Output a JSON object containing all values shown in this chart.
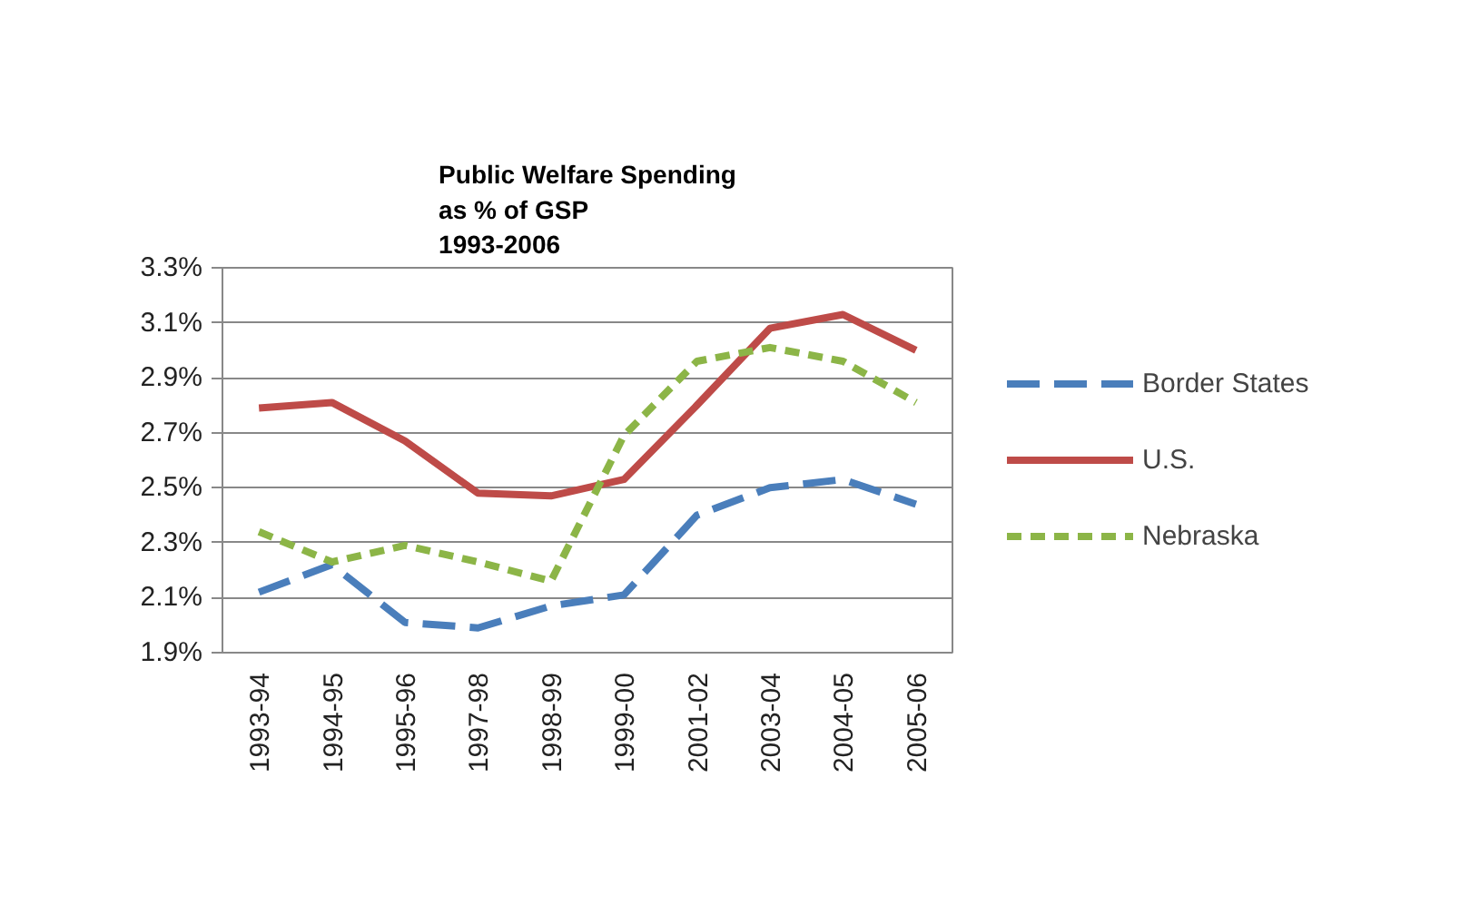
{
  "chart_data": {
    "type": "line",
    "title": "Public Welfare Spending\nas % of GSP\n1993-2006",
    "categories": [
      "1993-94",
      "1994-95",
      "1995-96",
      "1997-98",
      "1998-99",
      "1999-00",
      "2001-02",
      "2003-04",
      "2004-05",
      "2005-06"
    ],
    "series": [
      {
        "name": "Border States",
        "color": "#4a7ebb",
        "line_style": "dashed",
        "values": [
          2.12,
          2.22,
          2.01,
          1.99,
          2.07,
          2.11,
          2.4,
          2.5,
          2.53,
          2.44
        ]
      },
      {
        "name": "U.S.",
        "color": "#be4b48",
        "line_style": "solid",
        "values": [
          2.79,
          2.81,
          2.67,
          2.48,
          2.47,
          2.53,
          2.8,
          3.08,
          3.13,
          3.0
        ]
      },
      {
        "name": "Nebraska",
        "color": "#8cb547",
        "line_style": "dotted",
        "values": [
          2.34,
          2.23,
          2.29,
          2.23,
          2.16,
          2.69,
          2.96,
          3.01,
          2.96,
          2.81
        ]
      }
    ],
    "ylim": [
      1.9,
      3.3
    ],
    "yticks": [
      {
        "value": 1.9,
        "label": "1.9%"
      },
      {
        "value": 2.1,
        "label": "2.1%"
      },
      {
        "value": 2.3,
        "label": "2.3%"
      },
      {
        "value": 2.5,
        "label": "2.5%"
      },
      {
        "value": 2.7,
        "label": "2.7%"
      },
      {
        "value": 2.9,
        "label": "2.9%"
      },
      {
        "value": 3.1,
        "label": "3.1%"
      },
      {
        "value": 3.3,
        "label": "3.3%"
      }
    ],
    "grid": "y",
    "legend": "right",
    "marker": "none"
  }
}
